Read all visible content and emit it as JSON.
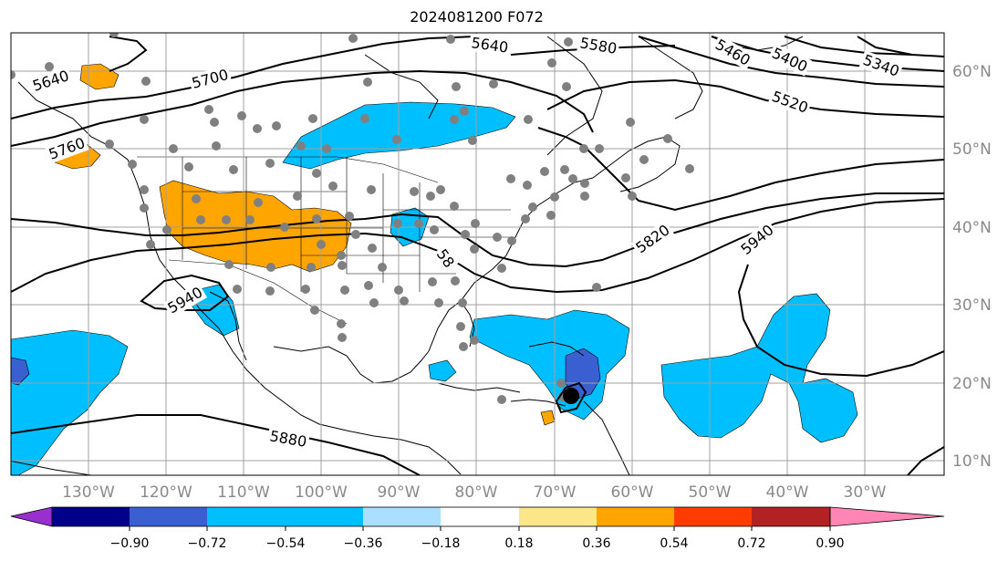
{
  "title": "2024081200 F072",
  "map": {
    "lat_labels": [
      "60°N",
      "50°N",
      "40°N",
      "30°N",
      "20°N",
      "10°N"
    ],
    "lon_labels": [
      "130°W",
      "120°W",
      "110°W",
      "100°W",
      "90°W",
      "80°W",
      "70°W",
      "60°W",
      "50°W",
      "40°W",
      "30°W"
    ],
    "contour_labels": [
      "5640",
      "5580",
      "5460",
      "5400",
      "5340",
      "5700",
      "5520",
      "5640",
      "5760",
      "5820",
      "5940",
      "5940",
      "5880",
      "58"
    ],
    "colors": {
      "ocean_land_bg": "#ffffff",
      "contour": "#000000",
      "grid": "#a0a0a0",
      "station_dot": "#808080",
      "storm_marker": "#000000"
    },
    "storm_marker": {
      "lat": 18.0,
      "lon": -68.0
    }
  },
  "colorbar": {
    "ticks": [
      "−0.90",
      "−0.72",
      "−0.54",
      "−0.36",
      "−0.18",
      "0.18",
      "0.36",
      "0.54",
      "0.72",
      "0.90"
    ],
    "colors": [
      "#9a2fcf",
      "#000088",
      "#3a5fd0",
      "#00bfff",
      "#aadfff",
      "#ffffff",
      "#fce68a",
      "#ffa500",
      "#ff3c00",
      "#b22222",
      "#ff85b5"
    ],
    "extend": "both"
  }
}
